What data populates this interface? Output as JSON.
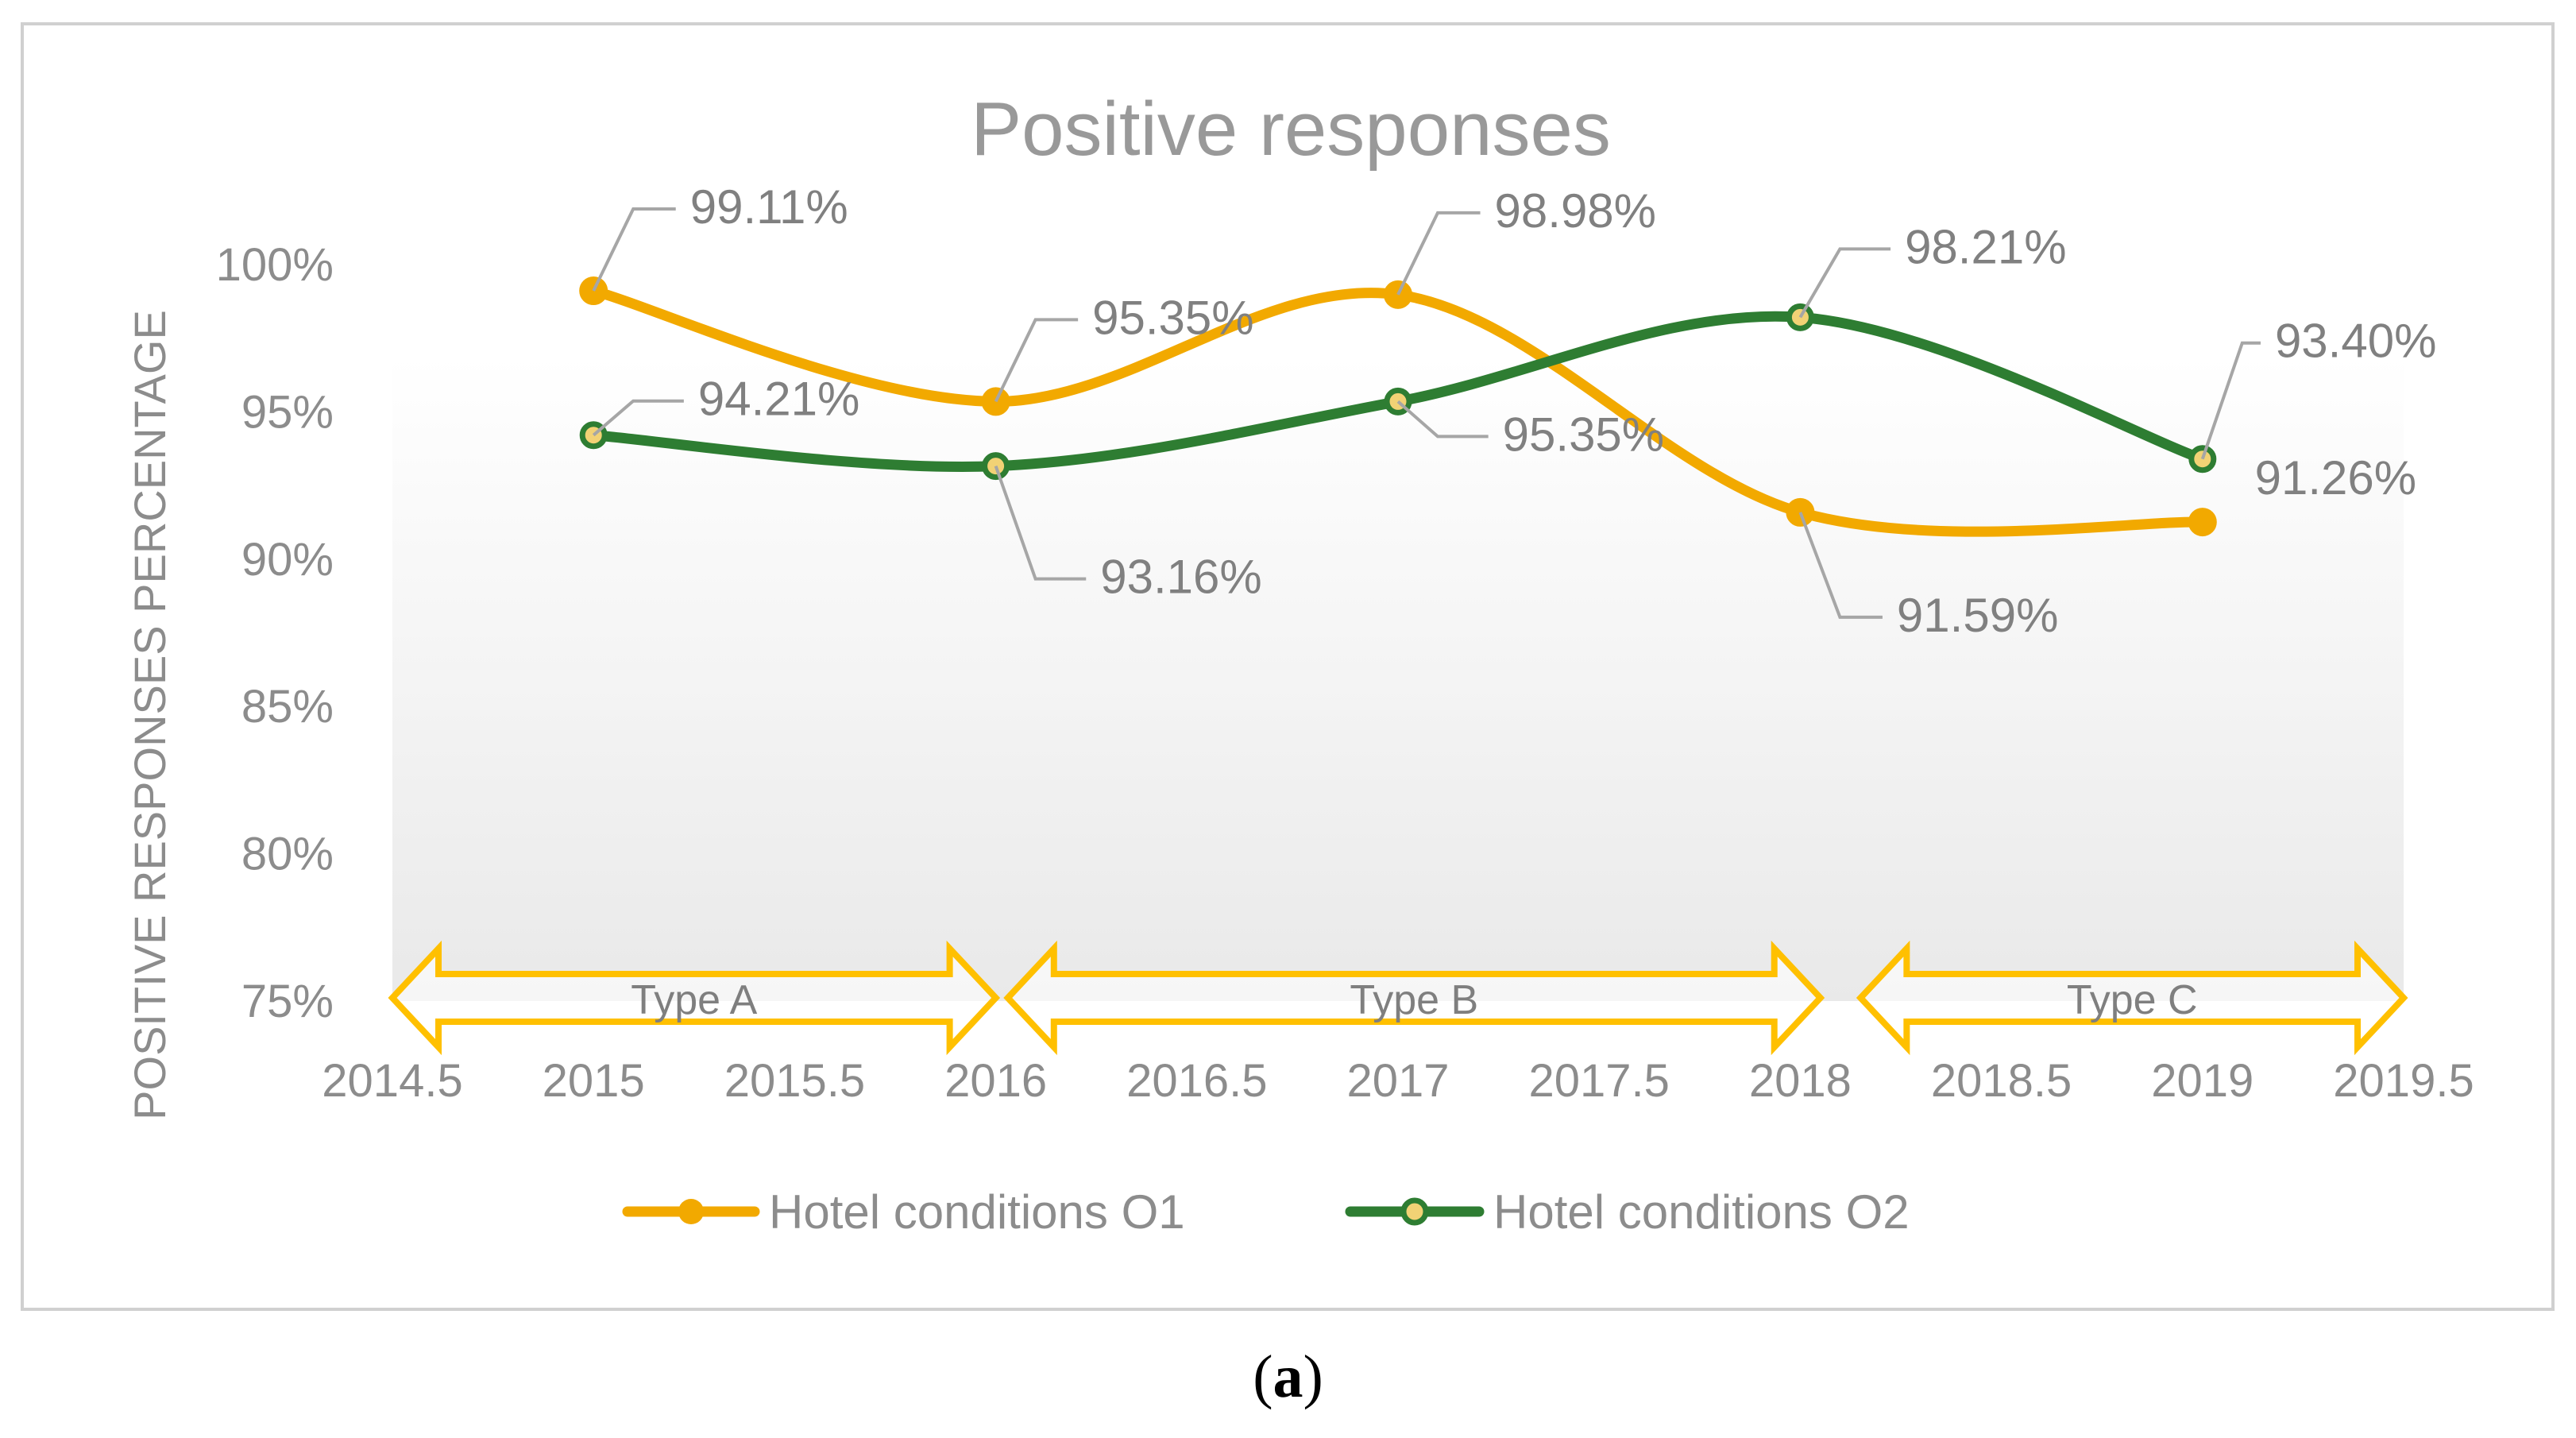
{
  "caption": {
    "open": "(",
    "letter": "a",
    "close": ")"
  },
  "chart_data": {
    "type": "line",
    "title": "Positive responses",
    "xlabel": "",
    "ylabel": "POSITIVE RESPONSES PERCENTAGE",
    "xlim": [
      2014.5,
      2019.5
    ],
    "ylim": [
      75,
      100
    ],
    "x_ticks": [
      "2014.5",
      "2015",
      "2015.5",
      "2016",
      "2016.5",
      "2017",
      "2017.5",
      "2018",
      "2018.5",
      "2019",
      "2019.5"
    ],
    "y_ticks": [
      "75%",
      "80%",
      "85%",
      "90%",
      "95%",
      "100%"
    ],
    "legend_position": "bottom",
    "series": [
      {
        "name": "Hotel conditions O1",
        "color": "#F2A900",
        "x": [
          2015,
          2016,
          2017,
          2018,
          2019
        ],
        "values": [
          99.11,
          95.35,
          98.98,
          91.59,
          91.26
        ],
        "labels": [
          "99.11%",
          "95.35%",
          "98.98%",
          "91.59%",
          "91.26%"
        ]
      },
      {
        "name": "Hotel conditions O2",
        "color": "#2E7D32",
        "x": [
          2015,
          2016,
          2017,
          2018,
          2019
        ],
        "values": [
          94.21,
          93.16,
          95.35,
          98.21,
          93.4
        ],
        "labels": [
          "94.21%",
          "93.16%",
          "95.35%",
          "98.21%",
          "93.40%"
        ]
      }
    ],
    "annotations": [
      {
        "label": "Type A",
        "from": 2014.5,
        "to": 2016.0
      },
      {
        "label": "Type B",
        "from": 2016.03,
        "to": 2018.05
      },
      {
        "label": "Type C",
        "from": 2018.15,
        "to": 2019.5
      }
    ]
  }
}
